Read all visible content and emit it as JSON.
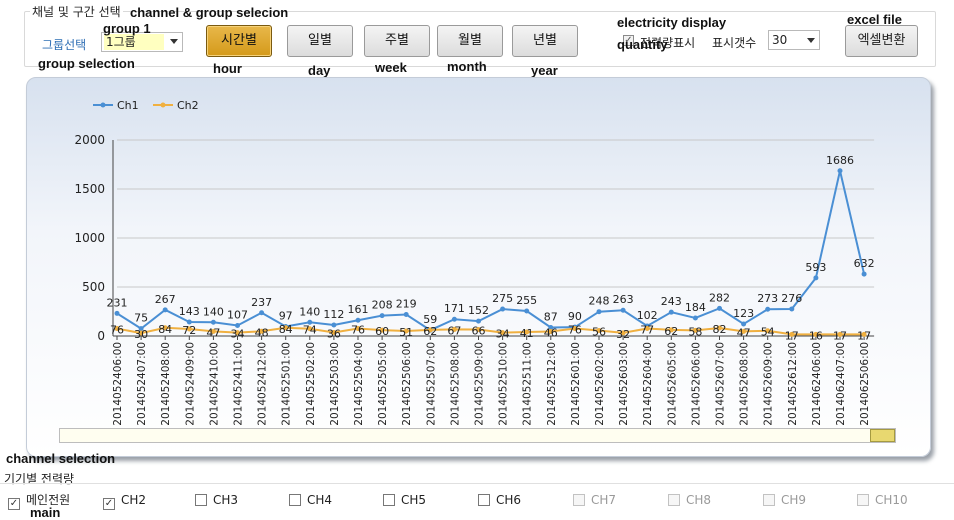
{
  "top_group": {
    "legend": "채널 및 구간 선택",
    "group_label": "그룹선택",
    "group_value": "1그룹",
    "period_buttons": [
      {
        "label": "시간별",
        "active": true
      },
      {
        "label": "일별",
        "active": false
      },
      {
        "label": "주별",
        "active": false
      },
      {
        "label": "월별",
        "active": false
      },
      {
        "label": "년별",
        "active": false
      }
    ],
    "display_checkbox_label": "전력량표시",
    "display_checked": true,
    "count_label": "표시갯수",
    "count_value": "30",
    "excel_button_label": "엑셀변환"
  },
  "annotations": {
    "channel_group": "channel & group selecion",
    "group1": "group 1",
    "group_selection": "group selection",
    "hour": "hour",
    "day": "day",
    "week": "week",
    "month": "month",
    "year": "year",
    "electricity_display": "electricity display",
    "quantity": "quantity",
    "excel_file": "excel file",
    "channel_selection": "channel selection",
    "main": "main"
  },
  "chart_data": {
    "type": "line",
    "legend_position": "top-left",
    "x": [
      "2014052406:00",
      "2014052407:00",
      "2014052408:00",
      "2014052409:00",
      "2014052410:00",
      "2014052411:00",
      "2014052412:00",
      "2014052501:00",
      "2014052502:00",
      "2014052503:00",
      "2014052504:00",
      "2014052505:00",
      "2014052506:00",
      "2014052507:00",
      "2014052508:00",
      "2014052509:00",
      "2014052510:00",
      "2014052511:00",
      "2014052512:00",
      "2014052601:00",
      "2014052602:00",
      "2014052603:00",
      "2014052604:00",
      "2014052605:00",
      "2014052606:00",
      "2014052607:00",
      "2014052608:00",
      "2014052609:00",
      "2014052612:00",
      "2014062406:00",
      "2014062407:00",
      "2014062506:00"
    ],
    "series": [
      {
        "name": "Ch1",
        "color": "#4a8fd4",
        "values": [
          231,
          75,
          267,
          143,
          140,
          107,
          237,
          97,
          140,
          112,
          161,
          208,
          219,
          59,
          171,
          152,
          275,
          255,
          87,
          90,
          248,
          263,
          102,
          243,
          184,
          282,
          123,
          273,
          276,
          593,
          1686,
          632
        ]
      },
      {
        "name": "Ch2",
        "color": "#f0b040",
        "values": [
          76,
          30,
          84,
          72,
          47,
          34,
          48,
          84,
          74,
          36,
          76,
          60,
          51,
          62,
          67,
          66,
          34,
          41,
          46,
          76,
          56,
          32,
          77,
          62,
          58,
          82,
          47,
          54,
          17,
          16,
          17,
          17
        ]
      }
    ],
    "ylim": [
      0,
      2000
    ],
    "y_ticks": [
      0,
      500,
      1000,
      1500,
      2000
    ],
    "grid": true
  },
  "channels": {
    "title": "기기별 전력량",
    "items": [
      {
        "label": "메인전원",
        "checked": true,
        "enabled": true
      },
      {
        "label": "CH2",
        "checked": true,
        "enabled": true
      },
      {
        "label": "CH3",
        "checked": false,
        "enabled": true
      },
      {
        "label": "CH4",
        "checked": false,
        "enabled": true
      },
      {
        "label": "CH5",
        "checked": false,
        "enabled": true
      },
      {
        "label": "CH6",
        "checked": false,
        "enabled": true
      },
      {
        "label": "CH7",
        "checked": false,
        "enabled": false
      },
      {
        "label": "CH8",
        "checked": false,
        "enabled": false
      },
      {
        "label": "CH9",
        "checked": false,
        "enabled": false
      },
      {
        "label": "CH10",
        "checked": false,
        "enabled": false
      }
    ]
  }
}
